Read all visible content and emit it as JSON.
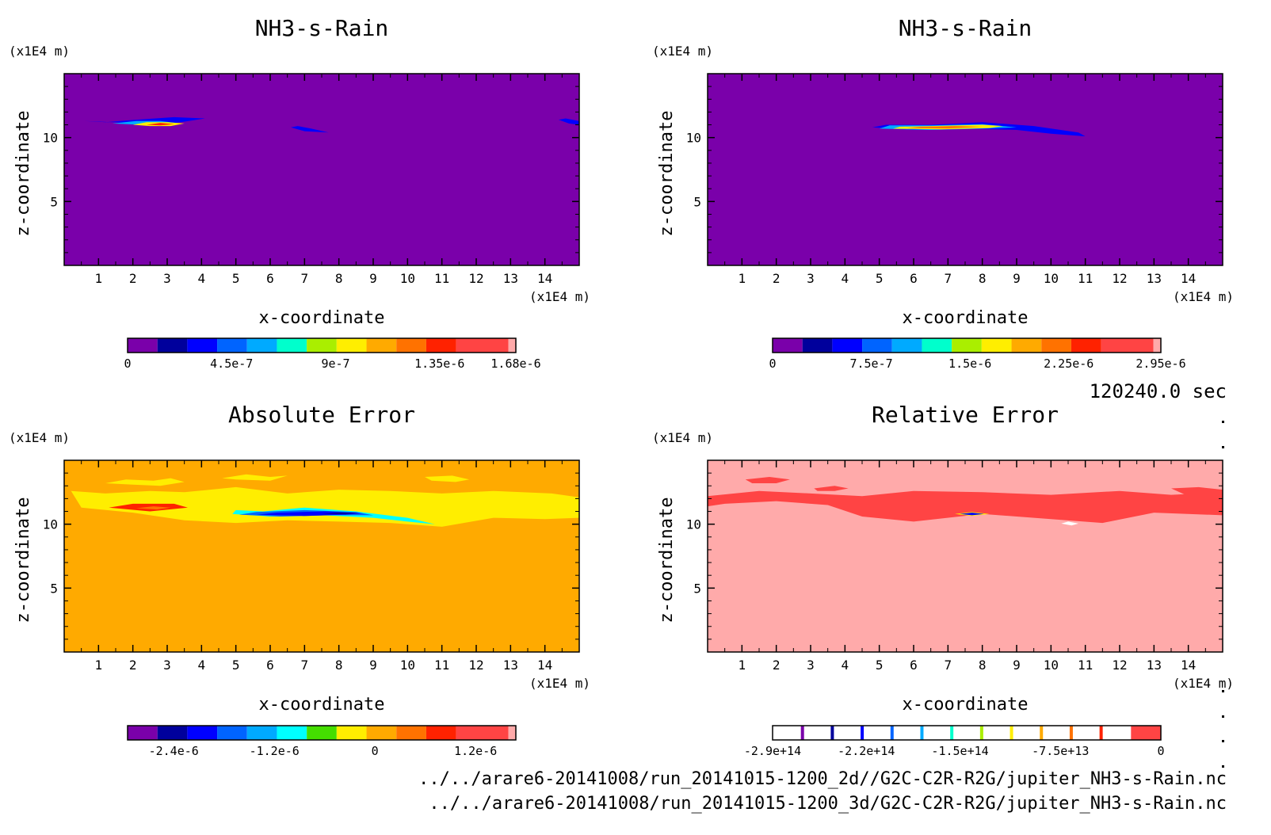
{
  "time_label": "120240.0 sec",
  "footer_lines": [
    "../../arare6-20141008/run_20141015-1200_2d//G2C-C2R-R2G/jupiter_NH3-s-Rain.nc",
    "../../arare6-20141008/run_20141015-1200_3d/G2C-C2R-R2G/jupiter_NH3-s-Rain.nc"
  ],
  "chart_data": [
    {
      "type": "heatmap",
      "title": "NH3-s-Rain",
      "xlabel": "x-coordinate",
      "ylabel": "z-coordinate",
      "x_unit": "(x1E4 m)",
      "y_unit": "(x1E4 m)",
      "xlim": [
        0,
        15
      ],
      "ylim": [
        0,
        15
      ],
      "xticks": [
        "1",
        "2",
        "3",
        "4",
        "5",
        "6",
        "7",
        "8",
        "9",
        "10",
        "11",
        "12",
        "13",
        "14"
      ],
      "yticks": [
        "5",
        "10"
      ],
      "background_color": "#7a00aa",
      "colorbar": {
        "colors": [
          "#7a00aa",
          "#00009c",
          "#0000ff",
          "#0064ff",
          "#00aaff",
          "#00ffcc",
          "#aaee00",
          "#ffee00",
          "#ffaa00",
          "#ff7200",
          "#ff2200",
          "#ff4444",
          "#ffaaaa"
        ],
        "tick_labels": [
          "0",
          "4.5e-7",
          "9e-7",
          "1.35e-6",
          "1.68e-6"
        ],
        "tick_values": [
          0,
          4.5e-07,
          9e-07,
          1.35e-06,
          1.68e-06
        ],
        "vmin": 0,
        "vmax": 1.68e-06
      },
      "features": [
        {
          "x": [
            0.6,
            1.4,
            2.2,
            2.8,
            3.4,
            4.1,
            3.2,
            2.1,
            1.2
          ],
          "z": [
            11.3,
            11.2,
            11.1,
            11.0,
            11.2,
            11.5,
            11.6,
            11.4,
            11.2
          ],
          "color": "#0000ff"
        },
        {
          "x": [
            1.4,
            2.2,
            2.8,
            3.4,
            2.8,
            2.1
          ],
          "z": [
            11.1,
            11.0,
            10.9,
            11.1,
            11.3,
            11.3
          ],
          "color": "#00aaff"
        },
        {
          "x": [
            2.0,
            2.5,
            3.1,
            3.5,
            3.0,
            2.4
          ],
          "z": [
            11.0,
            10.9,
            10.9,
            11.1,
            11.2,
            11.2
          ],
          "color": "#ffee00"
        },
        {
          "x": [
            2.4,
            2.8,
            3.2,
            2.8
          ],
          "z": [
            11.0,
            10.95,
            11.05,
            11.15
          ],
          "color": "#ff2200"
        },
        {
          "x": [
            6.6,
            7.0,
            7.7,
            7.2,
            6.8
          ],
          "z": [
            10.8,
            10.5,
            10.4,
            10.7,
            10.9
          ],
          "color": "#0000ff"
        },
        {
          "x": [
            14.4,
            14.7,
            15.0,
            15.0,
            14.6
          ],
          "z": [
            11.4,
            11.1,
            11.0,
            11.3,
            11.5
          ],
          "color": "#0000ff"
        }
      ]
    },
    {
      "type": "heatmap",
      "title": "NH3-s-Rain",
      "xlabel": "x-coordinate",
      "ylabel": "z-coordinate",
      "x_unit": "(x1E4 m)",
      "y_unit": "(x1E4 m)",
      "xlim": [
        0,
        15
      ],
      "ylim": [
        0,
        15
      ],
      "xticks": [
        "1",
        "2",
        "3",
        "4",
        "5",
        "6",
        "7",
        "8",
        "9",
        "10",
        "11",
        "12",
        "13",
        "14"
      ],
      "yticks": [
        "5",
        "10"
      ],
      "background_color": "#7a00aa",
      "colorbar": {
        "colors": [
          "#7a00aa",
          "#00009c",
          "#0000ff",
          "#0064ff",
          "#00aaff",
          "#00ffcc",
          "#aaee00",
          "#ffee00",
          "#ffaa00",
          "#ff7200",
          "#ff2200",
          "#ff4444",
          "#ffaaaa"
        ],
        "tick_labels": [
          "0",
          "7.5e-7",
          "1.5e-6",
          "2.25e-6",
          "2.95e-6"
        ],
        "tick_values": [
          0,
          7.5e-07,
          1.5e-06,
          2.25e-06,
          2.95e-06
        ],
        "vmin": 0,
        "vmax": 2.95e-06
      },
      "features": [
        {
          "x": [
            4.8,
            6,
            7.5,
            9,
            10,
            11,
            10.8,
            9.5,
            8,
            6.5,
            5.2
          ],
          "z": [
            10.8,
            10.6,
            10.7,
            10.6,
            10.3,
            10.1,
            10.4,
            10.9,
            11.2,
            11.0,
            11.0
          ],
          "color": "#0000ff"
        },
        {
          "x": [
            5.0,
            6.5,
            8,
            9.0,
            8,
            6.5,
            5.3
          ],
          "z": [
            10.7,
            10.6,
            10.7,
            10.8,
            11.05,
            10.95,
            10.95
          ],
          "color": "#00aaff"
        },
        {
          "x": [
            5.4,
            6.8,
            8.2,
            8.6,
            8,
            6.5,
            5.6
          ],
          "z": [
            10.7,
            10.65,
            10.75,
            10.9,
            11.0,
            10.9,
            10.85
          ],
          "color": "#ffee00"
        },
        {
          "x": [
            5.8,
            7,
            8.0,
            7.2,
            6.2
          ],
          "z": [
            10.75,
            10.72,
            10.85,
            10.9,
            10.85
          ],
          "color": "#ff7200"
        }
      ]
    },
    {
      "type": "heatmap",
      "title": "Absolute Error",
      "xlabel": "x-coordinate",
      "ylabel": "z-coordinate",
      "x_unit": "(x1E4 m)",
      "y_unit": "(x1E4 m)",
      "xlim": [
        0,
        15
      ],
      "ylim": [
        0,
        15
      ],
      "xticks": [
        "1",
        "2",
        "3",
        "4",
        "5",
        "6",
        "7",
        "8",
        "9",
        "10",
        "11",
        "12",
        "13",
        "14"
      ],
      "yticks": [
        "5",
        "10"
      ],
      "background_color": "#ffaa00",
      "colorbar": {
        "colors": [
          "#7a00aa",
          "#00009c",
          "#0000ff",
          "#0064ff",
          "#00aaff",
          "#00ffff",
          "#44dd00",
          "#ffee00",
          "#ffaa00",
          "#ff7200",
          "#ff2200",
          "#ff4444",
          "#ffaaaa"
        ],
        "tick_labels": [
          "-2.4e-6",
          "-1.2e-6",
          "0",
          "1.2e-6"
        ],
        "tick_values": [
          -2.4e-06,
          -1.2e-06,
          0,
          1.2e-06
        ],
        "vmin": -2.95e-06,
        "vmax": 1.68e-06
      },
      "features": [
        {
          "x": [
            0.2,
            1.2,
            2.5,
            3.5,
            5,
            6.5,
            8,
            9.5,
            11,
            12.5,
            14.2,
            15,
            15,
            14,
            12.5,
            11,
            9.5,
            8,
            6.5,
            5,
            3.5,
            2,
            0.5
          ],
          "z": [
            12.6,
            12.4,
            12.6,
            12.5,
            12.9,
            12.4,
            12.7,
            12.6,
            12.4,
            12.6,
            12.4,
            12.1,
            10.5,
            10.4,
            10.5,
            9.8,
            10.1,
            10.2,
            10.3,
            10.1,
            10.3,
            10.9,
            11.3
          ],
          "color": "#ffee00"
        },
        {
          "x": [
            1.2,
            1.8,
            2.6,
            3.1,
            3.5,
            2.8,
            2.0
          ],
          "z": [
            13.2,
            13.5,
            13.4,
            13.6,
            13.3,
            13.0,
            13.1
          ],
          "color": "#ffee00"
        },
        {
          "x": [
            4.6,
            5.3,
            6.0,
            6.5,
            6.0,
            5.0
          ],
          "z": [
            13.6,
            13.9,
            13.7,
            13.8,
            13.4,
            13.5
          ],
          "color": "#ffee00"
        },
        {
          "x": [
            10.5,
            11.3,
            11.8,
            11.4,
            10.7
          ],
          "z": [
            13.7,
            13.8,
            13.5,
            13.3,
            13.4
          ],
          "color": "#ffee00"
        },
        {
          "x": [
            1.3,
            2.5,
            3.6,
            3.2,
            2.0
          ],
          "z": [
            11.3,
            11.0,
            11.3,
            11.6,
            11.6
          ],
          "color": "#ff2200"
        },
        {
          "x": [
            2.1,
            2.7,
            3.1,
            2.6
          ],
          "z": [
            11.25,
            11.15,
            11.3,
            11.4
          ],
          "color": "#ff7200"
        },
        {
          "x": [
            4.9,
            6,
            7.5,
            9,
            10,
            10.8,
            10,
            8.5,
            7,
            5.8,
            5.0
          ],
          "z": [
            10.8,
            10.6,
            10.7,
            10.5,
            10.2,
            10.0,
            10.5,
            11.0,
            11.3,
            11.0,
            11.1
          ],
          "color": "#00ffff"
        },
        {
          "x": [
            5.1,
            6.3,
            7.8,
            9,
            8.5,
            7,
            5.6
          ],
          "z": [
            10.75,
            10.6,
            10.7,
            10.7,
            10.95,
            11.1,
            10.95
          ],
          "color": "#0064ff"
        },
        {
          "x": [
            5.6,
            7,
            8.2,
            8.7,
            7.6,
            6.2
          ],
          "z": [
            10.75,
            10.65,
            10.75,
            10.85,
            11.0,
            10.9
          ],
          "color": "#0000ff"
        },
        {
          "x": [
            7.5,
            8.2,
            8.6,
            8.0
          ],
          "z": [
            10.8,
            10.78,
            10.88,
            10.92
          ],
          "color": "#00009c"
        }
      ]
    },
    {
      "type": "heatmap",
      "title": "Relative Error",
      "xlabel": "x-coordinate",
      "ylabel": "z-coordinate",
      "x_unit": "(x1E4 m)",
      "y_unit": "(x1E4 m)",
      "xlim": [
        0,
        15
      ],
      "ylim": [
        0,
        15
      ],
      "xticks": [
        "1",
        "2",
        "3",
        "4",
        "5",
        "6",
        "7",
        "8",
        "9",
        "10",
        "11",
        "12",
        "13",
        "14"
      ],
      "yticks": [
        "5",
        "10"
      ],
      "background_color": "#ffaaaa",
      "colorbar": {
        "style": "white-with-lines",
        "colors": [
          "#ffffff",
          "#7a00aa",
          "#00009c",
          "#0000ff",
          "#0064ff",
          "#00aaff",
          "#00ffcc",
          "#aaee00",
          "#ffee00",
          "#ffaa00",
          "#ff7200",
          "#ff2200",
          "#ff4444"
        ],
        "tick_labels": [
          "-2.9e+14",
          "-2.2e+14",
          "-1.5e+14",
          "-7.5e+13",
          "0"
        ],
        "tick_values": [
          -290000000000000.0,
          -220000000000000.0,
          -150000000000000.0,
          -75000000000000.0,
          0
        ],
        "vmin": -290000000000000.0,
        "vmax": 0
      },
      "features": [
        {
          "x": [
            0,
            1.5,
            3,
            4.5,
            6,
            8,
            10,
            12,
            13.5,
            15,
            15,
            13,
            11.5,
            10,
            8,
            6,
            4.5,
            3.5,
            2,
            0.5,
            0
          ],
          "z": [
            12.2,
            12.6,
            12.4,
            12.2,
            12.6,
            12.5,
            12.3,
            12.6,
            12.3,
            12.5,
            10.7,
            10.9,
            10.1,
            10.4,
            10.8,
            10.2,
            10.6,
            11.5,
            11.8,
            11.6,
            11.4
          ],
          "color": "#ff4444"
        },
        {
          "x": [
            1.1,
            1.8,
            2.4,
            2.0,
            1.3
          ],
          "z": [
            13.5,
            13.7,
            13.5,
            13.2,
            13.2
          ],
          "color": "#ff4444"
        },
        {
          "x": [
            3.1,
            3.7,
            4.1,
            3.7,
            3.2
          ],
          "z": [
            12.8,
            13.0,
            12.8,
            12.6,
            12.6
          ],
          "color": "#ff4444"
        },
        {
          "x": [
            13.5,
            14.3,
            15,
            15,
            14.0
          ],
          "z": [
            12.8,
            12.9,
            12.7,
            12.2,
            12.2
          ],
          "color": "#ff4444"
        },
        {
          "x": [
            7.2,
            7.7,
            8.2,
            7.7
          ],
          "z": [
            10.8,
            10.65,
            10.8,
            10.95
          ],
          "color": "#ffee00"
        },
        {
          "x": [
            7.35,
            7.7,
            8.05,
            7.7
          ],
          "z": [
            10.8,
            10.7,
            10.8,
            10.9
          ],
          "color": "#0000ff"
        },
        {
          "x": [
            10.5,
            10.8,
            10.6,
            10.3
          ],
          "z": [
            10.2,
            10.05,
            9.9,
            10.05
          ],
          "color": "#ffffff"
        }
      ]
    }
  ]
}
